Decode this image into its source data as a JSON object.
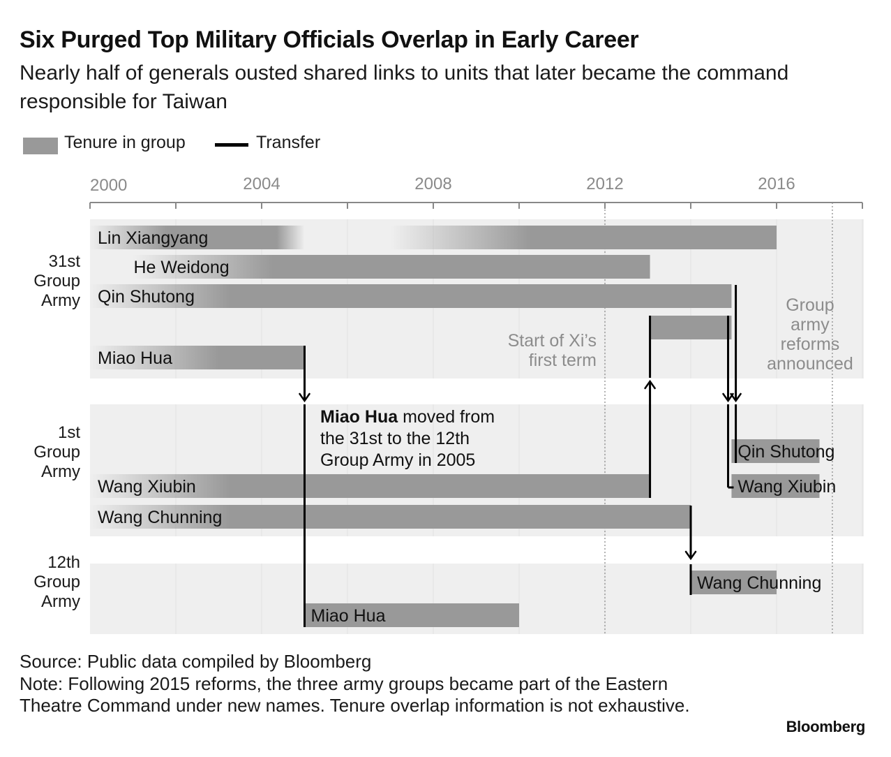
{
  "header": {
    "title": "Six Purged Top Military Officials Overlap in Early Career",
    "subtitle": "Nearly half of generals ousted shared links to units that later became the command responsible for Taiwan"
  },
  "legend": {
    "bar_label": "Tenure in group",
    "line_label": "Transfer"
  },
  "chart_data": {
    "type": "timeline",
    "title": "Six Purged Top Military Officials Overlap in Early Career",
    "x_axis": {
      "range": [
        2000,
        2018
      ],
      "tick_labels": [
        {
          "year": 2000,
          "label": "2000"
        },
        {
          "year": 2004,
          "label": "2004"
        },
        {
          "year": 2008,
          "label": "2008"
        },
        {
          "year": 2012,
          "label": "2012"
        },
        {
          "year": 2016,
          "label": "2016"
        }
      ],
      "minor_ticks": [
        2000,
        2002,
        2004,
        2006,
        2008,
        2010,
        2012,
        2014,
        2016,
        2018
      ]
    },
    "groups": [
      {
        "id": "31st",
        "label": "31st Group Army",
        "label_lines": [
          "31st",
          "Group",
          "Army"
        ]
      },
      {
        "id": "1st",
        "label": "1st Group Army",
        "label_lines": [
          "1st",
          "Group",
          "Army"
        ]
      },
      {
        "id": "12th",
        "label": "12th Group Army",
        "label_lines": [
          "12th",
          "Group",
          "Army"
        ]
      }
    ],
    "tenures": [
      {
        "group": "31st",
        "row": 0,
        "person": "Lin Xiangyang",
        "start": 2000,
        "end": 2005,
        "fade_start": true,
        "fade_end": true,
        "show_label": true
      },
      {
        "group": "31st",
        "row": 0,
        "person": "Lin Xiangyang",
        "start": 2007,
        "end": 2016,
        "fade_start": true,
        "show_label": false
      },
      {
        "group": "31st",
        "row": 1,
        "person": "He Weidong",
        "start": 2001,
        "end": 2013.05,
        "fade_start": true,
        "show_label": true
      },
      {
        "group": "31st",
        "row": 2,
        "person": "Qin Shutong",
        "start": 2000,
        "end": 2014.95,
        "fade_start": true,
        "show_label": true
      },
      {
        "group": "31st",
        "row": 3,
        "person": "Wang Xiubin",
        "start": 2013.05,
        "end": 2014.95,
        "show_label": false
      },
      {
        "group": "31st",
        "row": 4,
        "person": "Miao Hua",
        "start": 2000,
        "end": 2005,
        "fade_start": true,
        "show_label": true
      },
      {
        "group": "1st",
        "row": 0,
        "person": "Qin Shutong",
        "start": 2014.95,
        "end": 2017,
        "show_label": true
      },
      {
        "group": "1st",
        "row": 1,
        "person": "Wang Xiubin",
        "start": 2014.95,
        "end": 2017,
        "show_label": true
      },
      {
        "group": "1st",
        "row": 2,
        "person": "Wang Xiubin",
        "start": 2000,
        "end": 2013.05,
        "fade_start": true,
        "show_label": true
      },
      {
        "group": "1st",
        "row": 3,
        "person": "Wang Chunning",
        "start": 2000,
        "end": 2014,
        "fade_start": true,
        "show_label": true
      },
      {
        "group": "12th",
        "row": 0,
        "person": "Wang Chunning",
        "start": 2014,
        "end": 2016,
        "show_label": true
      },
      {
        "group": "12th",
        "row": 1,
        "person": "Miao Hua",
        "start": 2005,
        "end": 2010,
        "show_label": true
      }
    ],
    "transfers": [
      {
        "person": "Miao Hua",
        "from": "31st Group Army",
        "to": "12th Group Army",
        "year": 2005
      },
      {
        "person": "Wang Xiubin",
        "from": "1st Group Army",
        "to": "31st Group Army",
        "year": 2013
      },
      {
        "person": "Wang Xiubin",
        "from": "31st Group Army",
        "to": "1st Group Army",
        "year": 2015
      },
      {
        "person": "Qin Shutong",
        "from": "31st Group Army",
        "to": "1st Group Army",
        "year": 2015
      },
      {
        "person": "Wang Chunning",
        "from": "1st Group Army",
        "to": "12th Group Army",
        "year": 2014
      }
    ],
    "reference_lines": [
      {
        "year": 2012,
        "label": "Start of Xi’s first term",
        "label_lines": [
          "Start of Xi’s",
          "first term"
        ]
      },
      {
        "year": 2017.3,
        "label": "Group army reforms announced",
        "label_lines": [
          "Group",
          "army",
          "reforms",
          "announced"
        ]
      }
    ],
    "annotation": {
      "bold": "Miao Hua",
      "text": "moved from the 31st to the 12th Group Army in 2005",
      "lines": [
        " moved from",
        "the 31st to the 12th",
        "Group Army in 2005"
      ]
    },
    "colors": {
      "bar": "#999999",
      "band": "#efefef",
      "transfer": "#000000",
      "axis": "#888888",
      "grid": "#dedede",
      "reference_label": "#8c8c8c"
    }
  },
  "footer": {
    "source": "Source: Public data compiled by Bloomberg",
    "note": "Note: Following 2015 reforms, the three army groups became part of the Eastern Theatre Command under new names. Tenure overlap information is not exhaustive.",
    "brand": "Bloomberg"
  }
}
